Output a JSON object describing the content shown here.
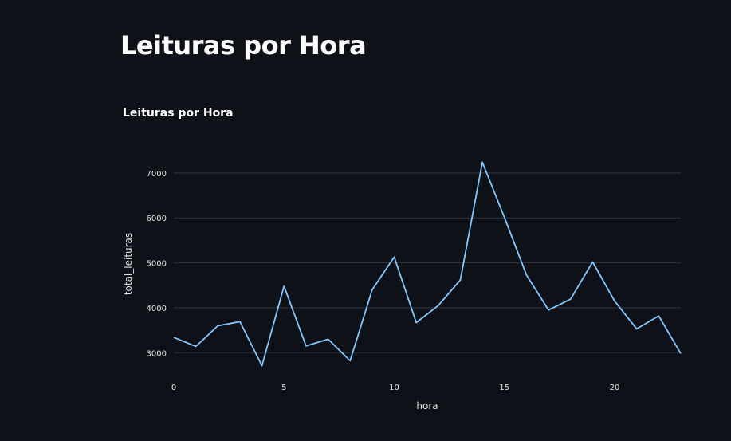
{
  "page": {
    "title": "Leituras por Hora"
  },
  "chart_data": {
    "type": "line",
    "title": "Leituras por Hora",
    "xlabel": "hora",
    "ylabel": "total_leituras",
    "x": [
      0,
      1,
      2,
      3,
      4,
      5,
      6,
      7,
      8,
      9,
      10,
      11,
      12,
      13,
      14,
      15,
      16,
      17,
      18,
      19,
      20,
      21,
      22,
      23
    ],
    "values": [
      3340,
      3140,
      3600,
      3690,
      2710,
      4480,
      3150,
      3300,
      2820,
      4400,
      5130,
      3670,
      4050,
      4620,
      7240,
      6010,
      4730,
      3950,
      4190,
      5020,
      4150,
      3530,
      3820,
      2980
    ],
    "xlim": [
      0,
      23
    ],
    "ylim": [
      2650,
      7300
    ],
    "xticks": [
      0,
      5,
      10,
      15,
      20
    ],
    "yticks": [
      3000,
      4000,
      5000,
      6000,
      7000
    ],
    "grid": "horizontal",
    "line_color": "#83c9ff",
    "grid_color": "#31333f"
  }
}
